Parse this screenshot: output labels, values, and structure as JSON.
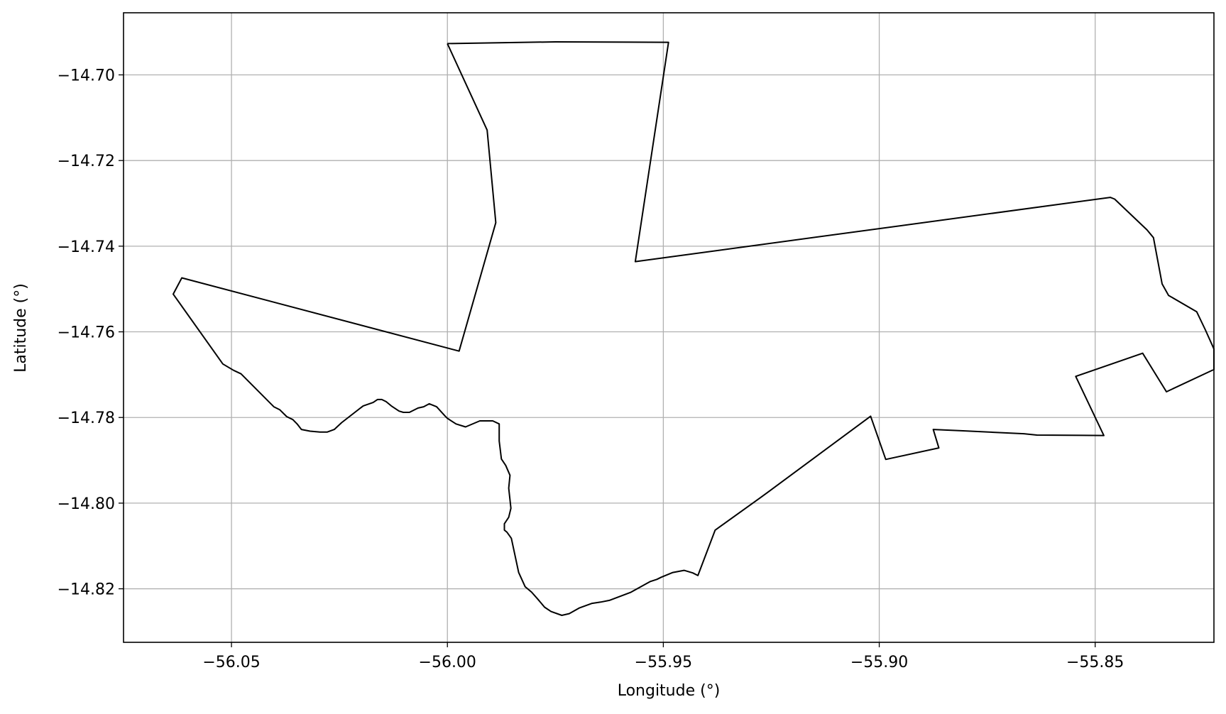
{
  "chart_data": {
    "type": "line",
    "title": "",
    "xlabel": "Longitude (°)",
    "ylabel": "Latitude (°)",
    "xlim": [
      -56.075,
      -55.8225
    ],
    "ylim": [
      -14.8325,
      -14.6855
    ],
    "xticks": [
      -56.05,
      -56.0,
      -55.95,
      -55.9,
      -55.85
    ],
    "xtick_labels": [
      "−56.05",
      "−56.00",
      "−55.95",
      "−55.90",
      "−55.85"
    ],
    "yticks": [
      -14.7,
      -14.72,
      -14.74,
      -14.76,
      -14.78,
      -14.8,
      -14.82
    ],
    "ytick_labels": [
      "−14.70",
      "−14.72",
      "−14.74",
      "−14.76",
      "−14.78",
      "−14.80",
      "−14.82"
    ],
    "grid": true,
    "line_color": "#000000",
    "grid_color": "#b0b0b0",
    "series": [
      {
        "x": [
          -56.0,
          -55.975,
          -55.9488,
          -55.9565,
          -55.8465,
          -55.8455,
          -55.838,
          -55.8365,
          -55.8345,
          -55.833,
          -55.8265,
          -55.8245,
          -55.8225,
          -55.8225,
          -55.8335,
          -55.839,
          -55.8545,
          -55.848,
          -55.8635,
          -55.8665,
          -55.881,
          -55.8875,
          -55.8862,
          -55.8985,
          -55.902,
          -55.926,
          -55.9275,
          -55.938,
          -55.942,
          -55.9432,
          -55.9452,
          -55.9478,
          -55.9505,
          -55.9515,
          -55.953,
          -55.9575,
          -55.9625,
          -55.9645,
          -55.9665,
          -55.9695,
          -55.9718,
          -55.9735,
          -55.976,
          -55.9775,
          -55.979,
          -55.9805,
          -55.982,
          -55.9835,
          -55.9852,
          -55.9862,
          -55.9868,
          -55.9868,
          -55.9858,
          -55.9853,
          -55.9858,
          -55.9855,
          -55.9865,
          -55.9875,
          -55.988,
          -55.988,
          -55.9895,
          -55.9925,
          -55.9958,
          -55.998,
          -56.0,
          -56.0005,
          -56.0025,
          -56.0042,
          -56.0055,
          -56.0068,
          -56.0088,
          -56.0102,
          -56.0112,
          -56.013,
          -56.0142,
          -56.0152,
          -56.0162,
          -56.0172,
          -56.0195,
          -56.0245,
          -56.0262,
          -56.0278,
          -56.0295,
          -56.0318,
          -56.0338,
          -56.0348,
          -56.0358,
          -56.0372,
          -56.0388,
          -56.0402,
          -56.0478,
          -56.0495,
          -56.052,
          -56.0635,
          -56.0615,
          -55.9973,
          -55.9888,
          -55.9908,
          -56.0
        ],
        "y": [
          -14.6927,
          -14.6923,
          -14.6924,
          -14.7436,
          -14.7286,
          -14.729,
          -14.7362,
          -14.738,
          -14.7488,
          -14.7515,
          -14.7553,
          -14.7595,
          -14.764,
          -14.7688,
          -14.774,
          -14.765,
          -14.7704,
          -14.7842,
          -14.7841,
          -14.7838,
          -14.7831,
          -14.7828,
          -14.7871,
          -14.7898,
          -14.7797,
          -14.7976,
          -14.7987,
          -14.8063,
          -14.8169,
          -14.8163,
          -14.8157,
          -14.8162,
          -14.8173,
          -14.8178,
          -14.8183,
          -14.8208,
          -14.8227,
          -14.8231,
          -14.8234,
          -14.8245,
          -14.8258,
          -14.8262,
          -14.8253,
          -14.8243,
          -14.8225,
          -14.8208,
          -14.8195,
          -14.8162,
          -14.8082,
          -14.8068,
          -14.8063,
          -14.8048,
          -14.8033,
          -14.8012,
          -14.7965,
          -14.7935,
          -14.7912,
          -14.7897,
          -14.7855,
          -14.7815,
          -14.7808,
          -14.7808,
          -14.7822,
          -14.7815,
          -14.7802,
          -14.7797,
          -14.7775,
          -14.7768,
          -14.7775,
          -14.7778,
          -14.7788,
          -14.7788,
          -14.7785,
          -14.7773,
          -14.7763,
          -14.7758,
          -14.7758,
          -14.7765,
          -14.7773,
          -14.7812,
          -14.7828,
          -14.7834,
          -14.7834,
          -14.7832,
          -14.7828,
          -14.7815,
          -14.7805,
          -14.7798,
          -14.7782,
          -14.7775,
          -14.7698,
          -14.769,
          -14.7675,
          -14.7512,
          -14.7474,
          -14.7645,
          -14.7345,
          -14.7129,
          -14.6927
        ]
      }
    ]
  }
}
